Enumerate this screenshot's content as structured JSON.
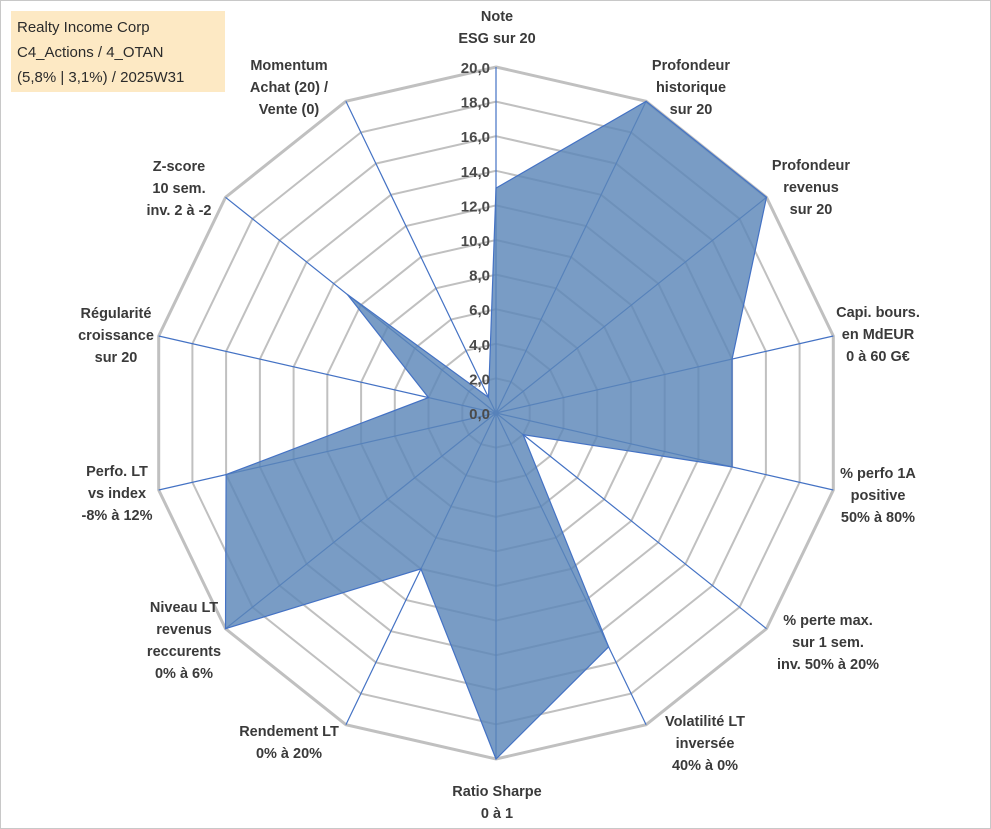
{
  "chart_title": {
    "line1": "Realty Income Corp",
    "line2": "C4_Actions / 4_OTAN",
    "line3": "(5,8% | 3,1%) / 2025W31"
  },
  "chart_data": {
    "type": "radar",
    "title": "Realty Income Corp C4_Actions / 4_OTAN (5,8% | 3,1%) / 2025W31",
    "rlim": [
      0,
      20
    ],
    "ticks": [
      "0,0",
      "2,0",
      "4,0",
      "6,0",
      "8,0",
      "10,0",
      "12,0",
      "14,0",
      "16,0",
      "18,0",
      "20,0"
    ],
    "grid": true,
    "colors": {
      "fill": "#5b86b8",
      "stroke": "#4472c4",
      "grid": "#c0c0c0",
      "spoke": "#4472c4"
    },
    "axes": [
      {
        "label": [
          "Note",
          "ESG sur 20"
        ],
        "value": 13
      },
      {
        "label": [
          "Profondeur",
          "historique",
          "sur 20"
        ],
        "value": 20
      },
      {
        "label": [
          "Profondeur",
          "revenus",
          "sur 20"
        ],
        "value": 20
      },
      {
        "label": [
          "Capi. bours.",
          "en MdEUR",
          "0 à 60 G€"
        ],
        "value": 14
      },
      {
        "label": [
          "% perfo 1A",
          "positive",
          "50% à 80%"
        ],
        "value": 14
      },
      {
        "label": [
          "% perte max.",
          "sur 1 sem.",
          "inv. 50% à 20%"
        ],
        "value": 2
      },
      {
        "label": [
          "Volatilité LT",
          "inversée",
          "40% à 0%"
        ],
        "value": 15
      },
      {
        "label": [
          "Ratio Sharpe",
          "0 à 1"
        ],
        "value": 20
      },
      {
        "label": [
          "Rendement LT",
          "0% à 20%"
        ],
        "value": 10
      },
      {
        "label": [
          "Niveau LT",
          "revenus",
          "reccurents",
          "0% à 6%"
        ],
        "value": 20
      },
      {
        "label": [
          "Perfo. LT",
          "vs index",
          "-8% à 12%"
        ],
        "value": 16
      },
      {
        "label": [
          "Régularité",
          "croissance",
          "sur 20"
        ],
        "value": 4
      },
      {
        "label": [
          "Z-score",
          "10 sem.",
          "inv. 2 à -2"
        ],
        "value": 11
      },
      {
        "label": [
          "Momentum",
          "Achat (20) /",
          "Vente (0)"
        ],
        "value": 1
      }
    ]
  }
}
